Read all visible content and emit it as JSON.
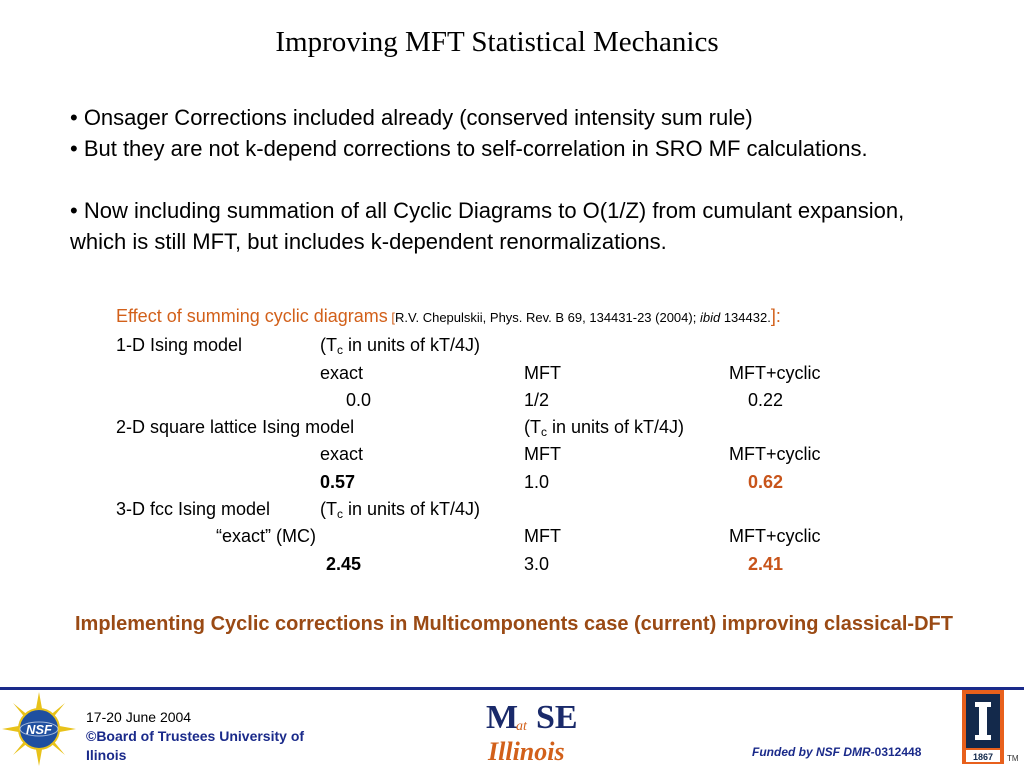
{
  "title": "Improving MFT Statistical Mechanics",
  "bullets": [
    "•  Onsager Corrections included already  (conserved intensity sum rule)",
    "• But they are not k-depend corrections to self-correlation in SRO MF calculations.",
    "• Now including summation of all Cyclic Diagrams to O(1/Z) from cumulant expansion, which is still MFT, but includes k-dependent renormalizations."
  ],
  "effect": {
    "heading": "Effect of summing cyclic diagrams",
    "ref_open": " [",
    "ref_text": "R.V. Chepulskii, Phys. Rev. B 69, 134431-23 (2004); ",
    "ref_ibid": "ibid",
    "ref_text2": " 134432.",
    "ref_close": "]:"
  },
  "models": {
    "m1": {
      "name": "1-D Ising model",
      "unit_pre": "(T",
      "unit_sub": "c",
      "unit_post": " in units of kT/4J)",
      "col_exact": "exact",
      "col_mft": "MFT",
      "col_cyclic": "MFT+cyclic",
      "val_exact": "0.0",
      "val_mft": "1/2",
      "val_cyclic": "0.22"
    },
    "m2": {
      "name": "2-D square lattice Ising model",
      "unit_pre": "(T",
      "unit_sub": "c",
      "unit_post": " in units of kT/4J)",
      "col_exact": "exact",
      "col_mft": "MFT",
      "col_cyclic": "MFT+cyclic",
      "val_exact": "0.57",
      "val_mft": "1.0",
      "val_cyclic": "0.62"
    },
    "m3": {
      "name": "3-D fcc Ising model",
      "unit_pre": "(T",
      "unit_sub": "c",
      "unit_post": " in units of kT/4J)",
      "col_exact": "“exact” (MC)",
      "col_mft": "MFT",
      "col_cyclic": "MFT+cyclic",
      "val_exact": "2.45",
      "val_mft": "3.0",
      "val_cyclic": "2.41"
    }
  },
  "implementing": "Implementing Cyclic corrections in Multicomponents case (current) improving classical-DFT",
  "footer": {
    "date": "17-20 June 2004",
    "copyright": "©Board of Trustees University of Ilinois",
    "funded_pre": "Funded by NSF DMR-",
    "funded_num": "0312448",
    "tm": "TM",
    "nsf_logo_text": "NSF",
    "mse_logo_m": "M",
    "mse_logo_at": "at",
    "mse_logo_se": "SE",
    "mse_logo_illinois": "Illinois",
    "illinois_year": "1867"
  },
  "colors": {
    "accent_orange": "#d2601a",
    "accent_brown": "#9a4a14",
    "footer_blue": "#1a2a8a"
  }
}
